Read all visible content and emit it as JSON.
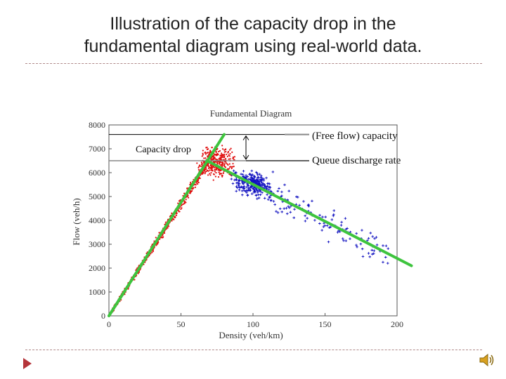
{
  "slide": {
    "title_line1": "Illustration of the capacity drop in the",
    "title_line2": "fundamental diagram using real-world data."
  },
  "colors": {
    "red_points": "#e01010",
    "blue_points": "#1010c0",
    "fit_lines": "#3ec43e",
    "annotation_lines": "#000000",
    "capacity_lines": "#888888",
    "accent": "#b5343a"
  },
  "icons": {
    "next": "play-arrow-icon",
    "audio": "speaker-icon"
  },
  "chart_data": {
    "type": "scatter",
    "title": "Fundamental Diagram",
    "xlabel": "Density (veh/km)",
    "ylabel": "Flow (veh/h)",
    "xlim": [
      0,
      200
    ],
    "ylim": [
      0,
      8000
    ],
    "xticks": [
      0,
      50,
      100,
      150,
      200
    ],
    "yticks": [
      0,
      1000,
      2000,
      3000,
      4000,
      5000,
      6000,
      7000,
      8000
    ],
    "grid": false,
    "annotations": {
      "capacity_drop": "Capacity drop",
      "free_flow_capacity": "(Free flow) capacity",
      "queue_discharge_rate": "Queue discharge rate",
      "free_flow_capacity_value": 7600,
      "queue_discharge_value": 6500
    },
    "fit_lines": [
      {
        "x": [
          0,
          80
        ],
        "y": [
          0,
          7600
        ]
      },
      {
        "x": [
          68,
          210
        ],
        "y": [
          6500,
          2100
        ]
      }
    ],
    "series": [
      {
        "name": "",
        "color": "#e01010",
        "clusters": [
          {
            "x_range": [
              2,
              68
            ],
            "band": "free_flow",
            "count": 700
          },
          {
            "x_range": [
              58,
              92
            ],
            "y_range": [
              5600,
              7300
            ],
            "count": 350
          }
        ]
      },
      {
        "name": "",
        "color": "#1010c0",
        "clusters": [
          {
            "x_range": [
              85,
              115
            ],
            "y_range": [
              4900,
              6200
            ],
            "count": 220
          },
          {
            "x_range": [
              85,
              195
            ],
            "band": "congested",
            "count": 160
          }
        ]
      }
    ]
  }
}
